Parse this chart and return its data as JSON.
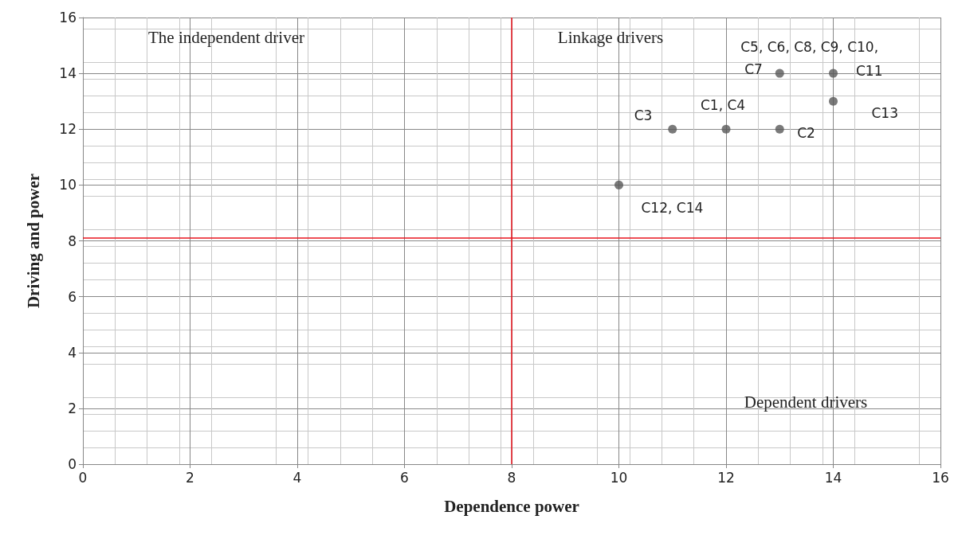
{
  "chart_data": {
    "type": "scatter",
    "xlabel": "Dependence power",
    "ylabel": "Driving and power",
    "x": [
      10,
      11,
      12,
      13,
      13,
      14,
      14
    ],
    "values": [
      10,
      12,
      12,
      12,
      14,
      14,
      13
    ],
    "color": "#595959",
    "marker": "circle",
    "xlim": [
      0,
      16
    ],
    "xticks": [
      0,
      2,
      4,
      6,
      8,
      10,
      12,
      14,
      16
    ],
    "ylim": [
      0,
      16
    ],
    "yticks": [
      0,
      2,
      4,
      6,
      8,
      10,
      12,
      14,
      16
    ],
    "grid": true,
    "ref_lines": [
      {
        "axis": "x",
        "value": 8,
        "color": "#e8141e"
      },
      {
        "axis": "y",
        "value": 8.1,
        "color": "#e8141e"
      }
    ],
    "annotations": [
      "The independent driver",
      "Linkage drivers",
      "Dependent drivers",
      {
        "text": "C12, C14",
        "x": 10,
        "y": 10
      },
      {
        "text": "C3",
        "x": 11,
        "y": 12
      },
      {
        "text": "C1, C4",
        "x": 12,
        "y": 12
      },
      {
        "text": "C2",
        "x": 13,
        "y": 12
      },
      {
        "text": "C7",
        "x": 13,
        "y": 14
      },
      {
        "text": "C5, C6, C8, C9, C10, C11",
        "x": 14,
        "y": 14
      },
      {
        "text": "C13",
        "x": 14,
        "y": 13
      }
    ]
  }
}
